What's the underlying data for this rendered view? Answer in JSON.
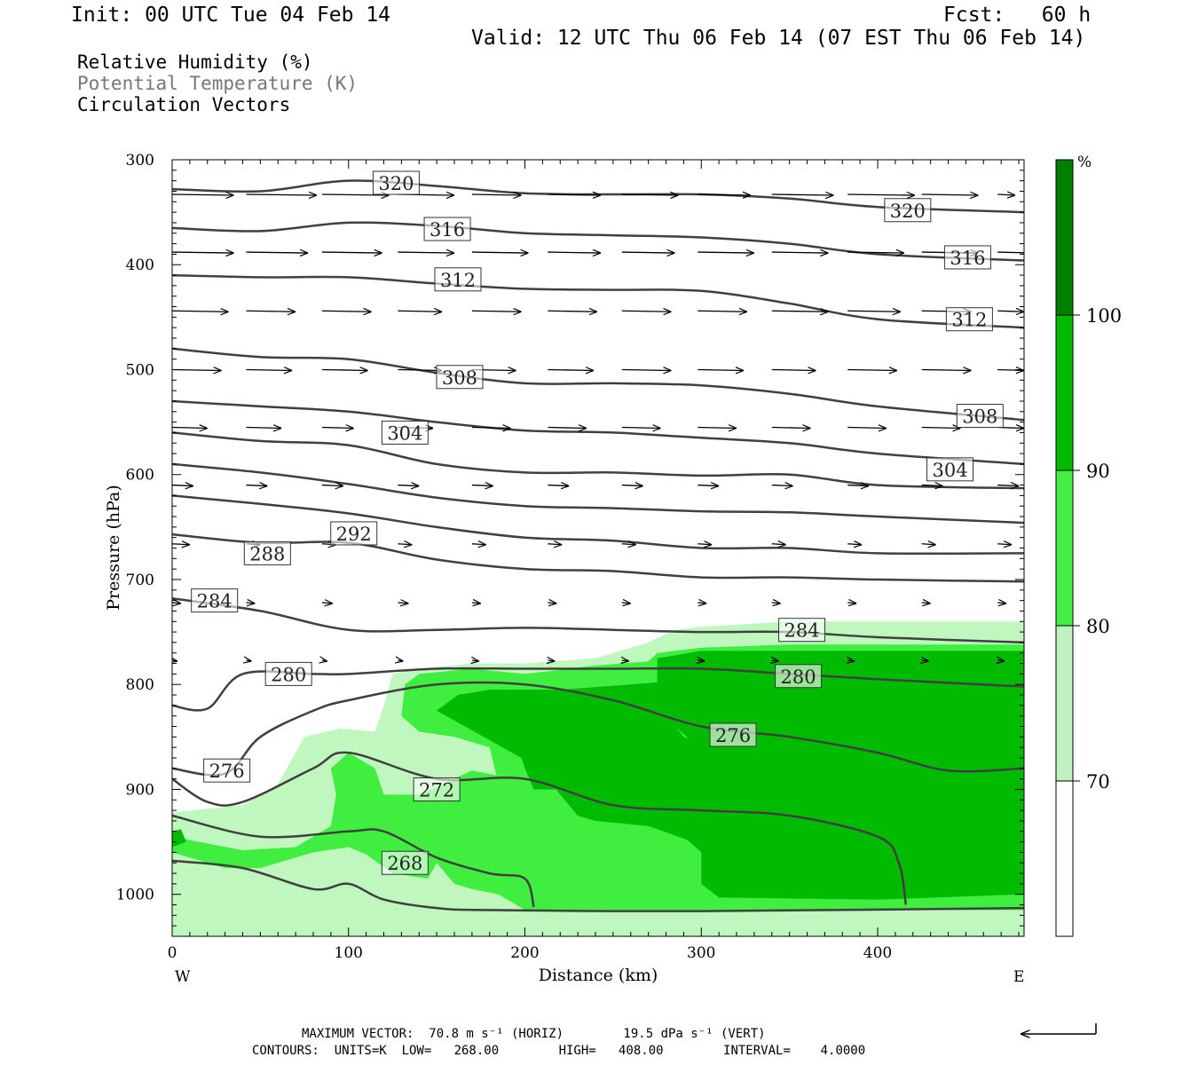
{
  "header": {
    "init": "Init: 00 UTC Tue 04 Feb 14",
    "fcst": "Fcst:   60 h",
    "valid": "Valid: 12 UTC Thu 06 Feb 14 (07 EST Thu 06 Feb 14)"
  },
  "legend": {
    "line1": "Relative Humidity (%)",
    "line2": "Potential Temperature (K)",
    "line3": "Circulation Vectors"
  },
  "footer": {
    "max_vector": "MAXIMUM VECTOR:  70.8 m s⁻¹ (HORIZ)        19.5 dPa s⁻¹ (VERT)",
    "contours": "CONTOURS:  UNITS=K  LOW=   268.00        HIGH=   408.00        INTERVAL=    4.0000"
  },
  "chart_data": {
    "type": "cross-section",
    "xlabel": "Distance (km)",
    "ylabel": "Pressure (hPa)",
    "x_ticks": [
      0,
      100,
      200,
      300,
      400
    ],
    "xlim": [
      0,
      483
    ],
    "y_ticks": [
      300,
      400,
      500,
      600,
      700,
      800,
      900,
      1000
    ],
    "ylim": [
      300,
      1040
    ],
    "x_end_labels": {
      "left": "W",
      "right": "E"
    },
    "colorbar": {
      "unit": "%",
      "levels": [
        70,
        80,
        90,
        100
      ],
      "colors": [
        "#ffffff",
        "#c0f0c0",
        "#44ee44",
        "#00bb00",
        "#008000"
      ]
    },
    "rh_fill_colors": {
      "c70": "#bff7bf",
      "c80": "#40ee40",
      "c90": "#00bb00"
    },
    "theta_line_color": "#404040",
    "theta_isolines": [
      {
        "label": "320",
        "x": [
          0,
          50,
          100,
          150,
          200,
          250,
          300,
          350,
          400,
          483
        ],
        "p": [
          328,
          330,
          320,
          325,
          332,
          333,
          333,
          337,
          345,
          350
        ],
        "labels_at": [
          [
            127,
            322
          ],
          [
            417,
            348
          ]
        ]
      },
      {
        "label": "316",
        "x": [
          0,
          50,
          100,
          150,
          200,
          250,
          300,
          350,
          400,
          483
        ],
        "p": [
          365,
          368,
          360,
          363,
          370,
          372,
          374,
          380,
          390,
          396
        ],
        "labels_at": [
          [
            156,
            366
          ],
          [
            451,
            393
          ]
        ]
      },
      {
        "label": "312",
        "x": [
          0,
          50,
          100,
          150,
          200,
          250,
          300,
          350,
          400,
          483
        ],
        "p": [
          410,
          412,
          412,
          418,
          423,
          424,
          425,
          437,
          452,
          460
        ],
        "labels_at": [
          [
            162,
            414
          ],
          [
            452,
            452
          ]
        ]
      },
      {
        "label": "308",
        "x": [
          0,
          50,
          100,
          150,
          200,
          250,
          300,
          350,
          400,
          483
        ],
        "p": [
          480,
          488,
          490,
          503,
          513,
          513,
          515,
          523,
          535,
          548
        ],
        "labels_at": [
          [
            163,
            507
          ],
          [
            458,
            544
          ]
        ]
      },
      {
        "label": "304",
        "x": [
          0,
          50,
          100,
          150,
          200,
          250,
          300,
          350,
          400,
          483
        ],
        "p": [
          530,
          535,
          540,
          550,
          558,
          560,
          565,
          570,
          580,
          590
        ],
        "labels_at": [
          [
            132,
            560
          ],
          [
            441,
            595
          ]
        ]
      },
      {
        "label": "",
        "x": [
          0,
          50,
          100,
          150,
          200,
          250,
          300,
          350,
          400,
          483
        ],
        "p": [
          560,
          568,
          572,
          590,
          598,
          598,
          601,
          600,
          610,
          613
        ]
      },
      {
        "label": "",
        "x": [
          0,
          50,
          100,
          150,
          200,
          250,
          300,
          350,
          400,
          483
        ],
        "p": [
          590,
          598,
          609,
          622,
          630,
          632,
          635,
          636,
          640,
          646
        ]
      },
      {
        "label": "292",
        "x": [
          0,
          50,
          100,
          150,
          200,
          250,
          300,
          350,
          400,
          483
        ],
        "p": [
          620,
          628,
          637,
          650,
          660,
          663,
          670,
          670,
          675,
          675
        ],
        "labels_at": [
          [
            103,
            656
          ]
        ]
      },
      {
        "label": "288",
        "x": [
          0,
          50,
          100,
          150,
          200,
          250,
          300,
          350,
          400,
          483
        ],
        "p": [
          657,
          665,
          665,
          681,
          690,
          692,
          698,
          698,
          700,
          702
        ],
        "labels_at": [
          [
            54,
            675
          ]
        ]
      },
      {
        "label": "284",
        "x": [
          0,
          50,
          100,
          150,
          200,
          250,
          300,
          350,
          400,
          483
        ],
        "p": [
          718,
          730,
          748,
          748,
          746,
          748,
          750,
          750,
          755,
          760
        ],
        "labels_at": [
          [
            24,
            720
          ],
          [
            357,
            748
          ]
        ]
      },
      {
        "label": "280",
        "x": [
          0,
          20,
          40,
          80,
          100,
          150,
          200,
          250,
          300,
          350,
          400,
          483
        ],
        "p": [
          820,
          823,
          790,
          790,
          790,
          785,
          785,
          785,
          785,
          790,
          795,
          802
        ],
        "labels_at": [
          [
            66,
            790
          ],
          [
            355,
            792
          ]
        ]
      },
      {
        "label": "276",
        "x": [
          0,
          30,
          50,
          80,
          100,
          150,
          200,
          250,
          300,
          350,
          400,
          440,
          483
        ],
        "p": [
          880,
          885,
          850,
          825,
          815,
          800,
          800,
          815,
          840,
          850,
          865,
          882,
          880
        ],
        "labels_at": [
          [
            31,
            882
          ],
          [
            318,
            848
          ]
        ]
      },
      {
        "label": "272",
        "x": [
          0,
          20,
          40,
          80,
          100,
          150,
          200,
          250,
          300,
          350,
          400,
          412,
          416
        ],
        "p": [
          890,
          912,
          912,
          880,
          865,
          890,
          890,
          915,
          920,
          925,
          945,
          970,
          1010
        ],
        "labels_at": [
          [
            150,
            900
          ]
        ]
      },
      {
        "label": "",
        "x": [
          0,
          50,
          100,
          120,
          150,
          180,
          200,
          205
        ],
        "p": [
          925,
          945,
          940,
          940,
          965,
          980,
          985,
          1012
        ]
      },
      {
        "label": "268",
        "x": [
          0,
          40,
          80,
          100,
          120,
          150,
          180,
          300,
          483
        ],
        "p": [
          968,
          975,
          995,
          990,
          1005,
          1013,
          1015,
          1016,
          1013
        ],
        "labels_at": [
          [
            132,
            970
          ]
        ]
      }
    ],
    "vector_rows": [
      {
        "p": 333,
        "x": [
          0,
          42,
          85,
          128,
          170,
          213,
          255,
          298,
          340,
          383,
          425,
          468
        ],
        "len_km": [
          35,
          40,
          38,
          32,
          28,
          30,
          32,
          30,
          35,
          38,
          32,
          10
        ]
      },
      {
        "p": 388,
        "x": [
          0,
          42,
          85,
          128,
          170,
          213,
          255,
          298,
          340,
          383,
          425,
          468
        ],
        "len_km": [
          35,
          35,
          34,
          32,
          32,
          30,
          30,
          32,
          32,
          32,
          32,
          20
        ]
      },
      {
        "p": 444,
        "x": [
          0,
          42,
          85,
          128,
          170,
          213,
          255,
          298,
          340,
          383,
          425,
          468
        ],
        "len_km": [
          32,
          28,
          28,
          25,
          28,
          28,
          28,
          28,
          32,
          30,
          28,
          15
        ]
      },
      {
        "p": 500,
        "x": [
          0,
          42,
          85,
          128,
          170,
          213,
          255,
          298,
          340,
          383,
          425,
          468
        ],
        "len_km": [
          28,
          26,
          26,
          25,
          25,
          26,
          28,
          26,
          25,
          28,
          28,
          15
        ]
      },
      {
        "p": 555,
        "x": [
          0,
          42,
          85,
          128,
          170,
          213,
          255,
          298,
          340,
          383,
          425,
          468
        ],
        "len_km": [
          20,
          20,
          18,
          20,
          22,
          22,
          22,
          22,
          22,
          22,
          22,
          15
        ]
      },
      {
        "p": 610,
        "x": [
          0,
          42,
          85,
          128,
          170,
          213,
          255,
          298,
          340,
          383,
          425,
          468
        ],
        "len_km": [
          12,
          12,
          12,
          12,
          12,
          12,
          12,
          12,
          12,
          12,
          12,
          12
        ]
      },
      {
        "p": 666,
        "x": [
          0,
          42,
          85,
          128,
          170,
          213,
          255,
          298,
          340,
          383,
          425,
          468
        ],
        "len_km": [
          10,
          8,
          8,
          8,
          8,
          8,
          8,
          8,
          8,
          8,
          8,
          8
        ]
      },
      {
        "p": 722,
        "x": [
          0,
          42,
          85,
          128,
          170,
          213,
          255,
          298,
          340,
          383,
          425,
          468
        ],
        "len_km": [
          5,
          5,
          6,
          6,
          5,
          5,
          5,
          5,
          5,
          5,
          5,
          5
        ]
      },
      {
        "p": 777,
        "x": [
          0,
          42,
          85,
          128,
          170,
          213,
          255,
          298,
          340,
          383,
          425,
          468
        ],
        "len_km": [
          3,
          3,
          3,
          3,
          4,
          4,
          4,
          4,
          4,
          4,
          4,
          4
        ]
      }
    ],
    "max_vector_ref": "←┐"
  }
}
